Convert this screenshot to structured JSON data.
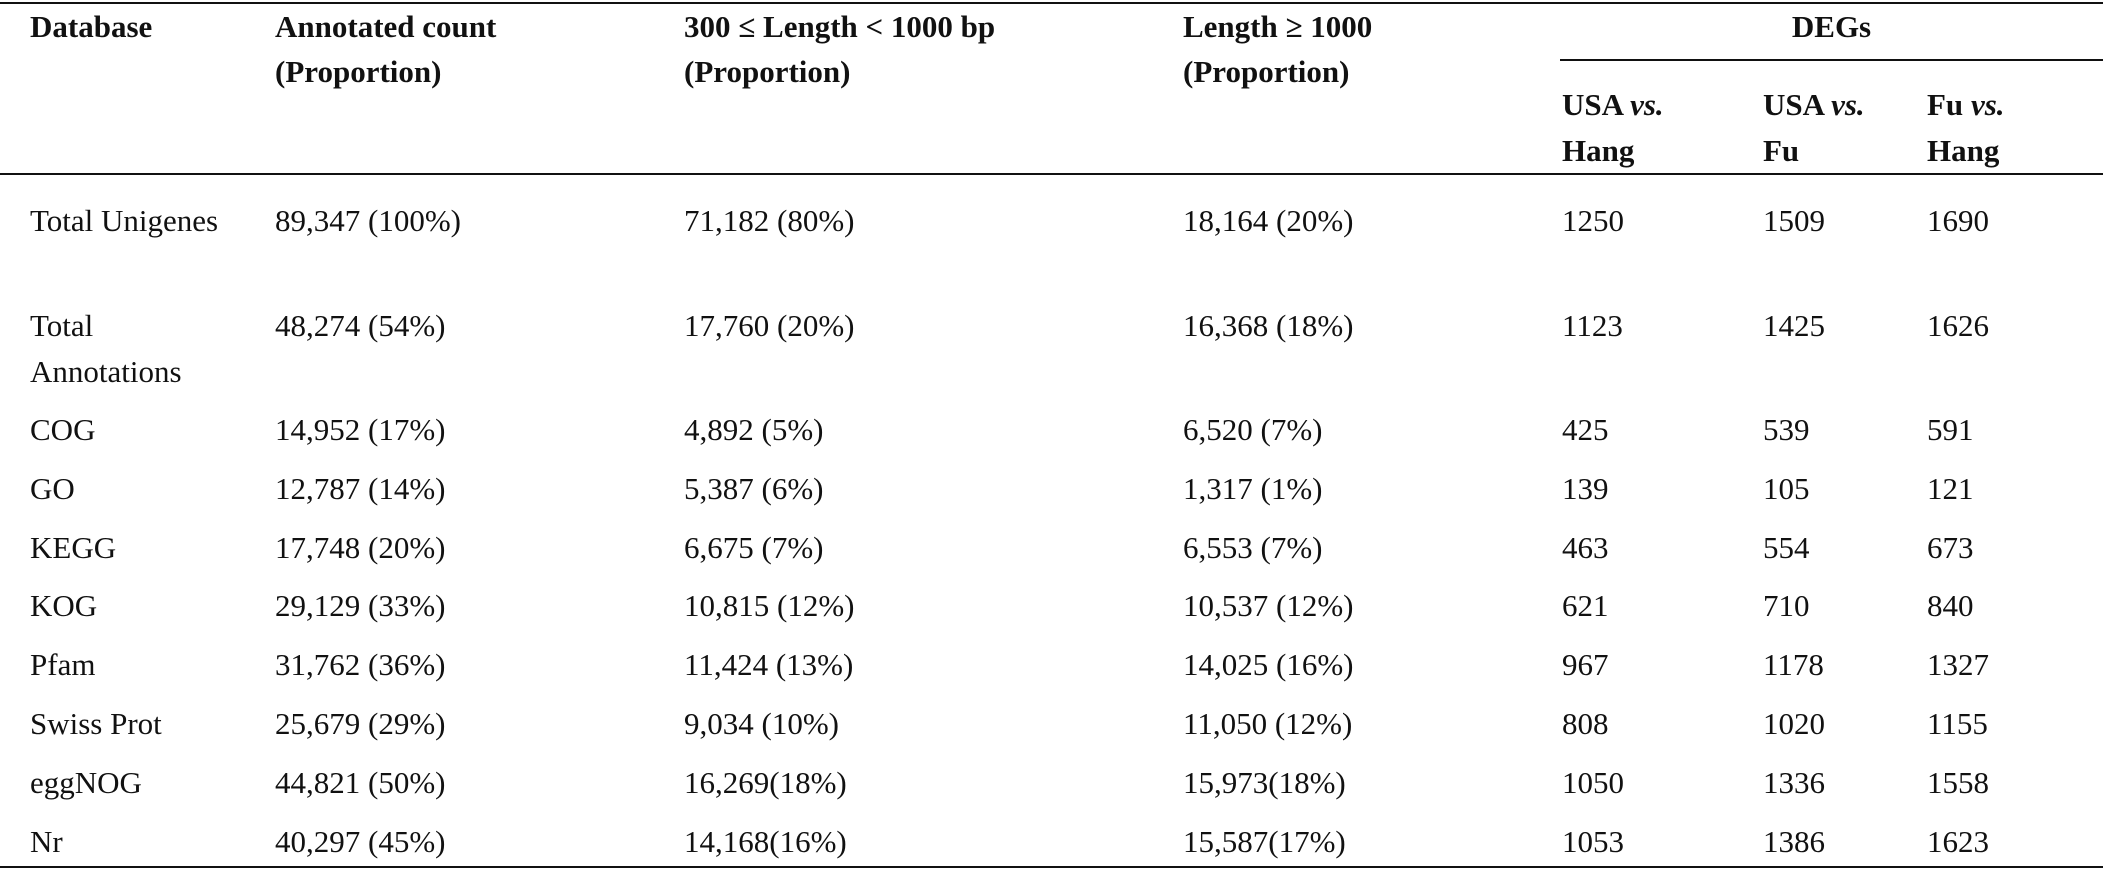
{
  "table": {
    "header": {
      "columns": [
        [
          "Database"
        ],
        [
          "Annotated count",
          "(Proportion)"
        ],
        [
          "300 ≤ Length < 1000 bp",
          "(Proportion)"
        ],
        [
          "Length ≥ 1000",
          "(Proportion)"
        ]
      ],
      "group": "DEGs",
      "subcolumns": [
        {
          "pre": "USA",
          "em": "vs.",
          "post": "Hang"
        },
        {
          "pre": "USA",
          "em": "vs.",
          "post": "Fu"
        },
        {
          "pre": "Fu",
          "em": "vs.",
          "post": "Hang"
        }
      ]
    },
    "rows": [
      [
        "Total Unigenes",
        "89,347 (100%)",
        "71,182 (80%)",
        "18,164 (20%)",
        "1250",
        "1509",
        "1690"
      ],
      [
        "Total Annotations",
        "48,274 (54%)",
        "17,760 (20%)",
        "16,368 (18%)",
        "1123",
        "1425",
        "1626"
      ],
      [
        "COG",
        "14,952 (17%)",
        "4,892 (5%)",
        "6,520 (7%)",
        "425",
        "539",
        "591"
      ],
      [
        "GO",
        "12,787 (14%)",
        "5,387 (6%)",
        "1,317 (1%)",
        "139",
        "105",
        "121"
      ],
      [
        "KEGG",
        "17,748 (20%)",
        "6,675 (7%)",
        "6,553 (7%)",
        "463",
        "554",
        "673"
      ],
      [
        "KOG",
        "29,129 (33%)",
        "10,815 (12%)",
        "10,537 (12%)",
        "621",
        "710",
        "840"
      ],
      [
        "Pfam",
        "31,762 (36%)",
        "11,424 (13%)",
        "14,025 (16%)",
        "967",
        "1178",
        "1327"
      ],
      [
        "Swiss Prot",
        "25,679 (29%)",
        "9,034 (10%)",
        "11,050 (12%)",
        "808",
        "1020",
        "1155"
      ],
      [
        "eggNOG",
        "44,821 (50%)",
        "16,269(18%)",
        "15,973(18%)",
        "1050",
        "1336",
        "1558"
      ],
      [
        "Nr",
        "40,297 (45%)",
        "14,168(16%)",
        "15,587(17%)",
        "1053",
        "1386",
        "1623"
      ]
    ]
  }
}
